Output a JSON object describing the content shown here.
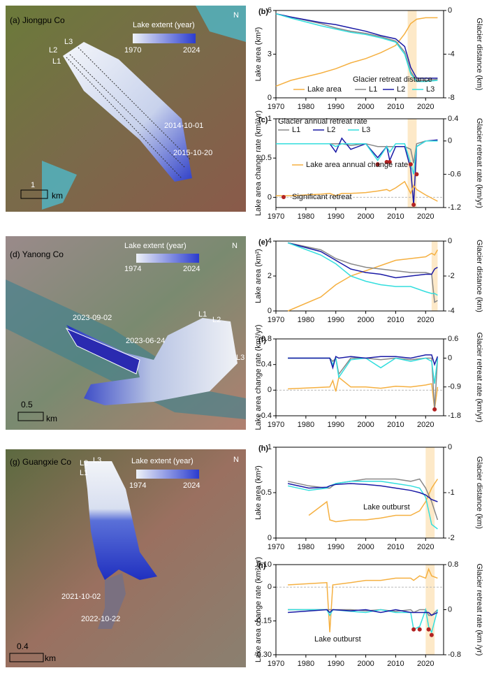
{
  "maps": [
    {
      "title": "(a) Jiongpu Co",
      "legend_title": "Lake extent (year)",
      "legend_start": "1970",
      "legend_end": "2024",
      "north": "N",
      "lines": [
        "L1",
        "L2",
        "L3"
      ],
      "dates": [
        "2014-10-01",
        "2015-10-20"
      ],
      "scale": "1",
      "scale_unit": "km"
    },
    {
      "title": "(d) Yanong Co",
      "legend_title": "Lake extent (year)",
      "legend_start": "1974",
      "legend_end": "2024",
      "north": "N",
      "lines": [
        "L1",
        "L2",
        "L3"
      ],
      "dates": [
        "2023-09-02",
        "2023-06-24"
      ],
      "scale": "0.5",
      "scale_unit": "km"
    },
    {
      "title": "(g) Guangxie Co",
      "legend_title": "Lake extent (year)",
      "legend_start": "1974",
      "legend_end": "2024",
      "north": "N",
      "lines": [
        "L1",
        "L2",
        "L3"
      ],
      "dates": [
        "2021-10-02",
        "2022-10-22"
      ],
      "scale": "0.4",
      "scale_unit": "km"
    }
  ],
  "chart_data": [
    {
      "type": "line",
      "label": "(b)",
      "ylabel": "Lake area (km²)",
      "y2label": "Glacier distance (km)",
      "xlim": [
        1970,
        2026
      ],
      "xticks": [
        1970,
        1980,
        1990,
        2000,
        2010,
        2020
      ],
      "ylim": [
        0,
        6
      ],
      "yticks": [
        0,
        3,
        6
      ],
      "y2lim": [
        -8,
        0
      ],
      "y2ticks": [
        0,
        -4,
        -8
      ],
      "highlight": [
        2014,
        2017
      ],
      "legend_title": "Glacier retreat distance",
      "x": [
        1970,
        1975,
        1985,
        1990,
        1995,
        2000,
        2005,
        2010,
        2013,
        2015,
        2017,
        2020,
        2024
      ],
      "series": [
        {
          "name": "Lake area",
          "color": "#f5b041",
          "values": [
            0.8,
            1.2,
            1.7,
            2.0,
            2.4,
            2.7,
            3.1,
            3.6,
            4.4,
            5.1,
            5.4,
            5.5,
            5.5
          ]
        },
        {
          "name": "L1",
          "color": "#888888",
          "axis": "y2",
          "values": [
            -0.3,
            -0.6,
            -1.2,
            -1.6,
            -1.9,
            -2.1,
            -2.4,
            -2.8,
            -3.8,
            -5.6,
            -6.4,
            -6.4,
            -6.3
          ]
        },
        {
          "name": "L2",
          "color": "#1a1aa6",
          "axis": "y2",
          "values": [
            -0.3,
            -0.6,
            -1.1,
            -1.3,
            -1.6,
            -1.9,
            -2.3,
            -2.6,
            -3.3,
            -5.2,
            -6.2,
            -6.2,
            -6.2
          ]
        },
        {
          "name": "L3",
          "color": "#33dede",
          "axis": "y2",
          "values": [
            -0.3,
            -0.7,
            -1.4,
            -1.7,
            -2.0,
            -2.2,
            -2.5,
            -2.9,
            -4.0,
            -5.8,
            -6.5,
            -6.5,
            -6.4
          ]
        }
      ]
    },
    {
      "type": "line",
      "label": "(c)",
      "ylabel": "Lake area change rate (km²/yr)",
      "y2label": "Glacier retreat rate (km/yr)",
      "xlim": [
        1970,
        2026
      ],
      "xticks": [
        1970,
        1980,
        1990,
        2000,
        2010,
        2020
      ],
      "ylim": [
        -0.13,
        1
      ],
      "yticks": [
        0,
        0.5,
        1
      ],
      "y2lim": [
        -1.2,
        0.4
      ],
      "y2ticks": [
        0.4,
        0,
        -0.6,
        -1.2
      ],
      "highlight": [
        2014,
        2017
      ],
      "zero_line": true,
      "legend_title": "Glacier annual retreat rate",
      "x": [
        1970,
        1975,
        1985,
        1988,
        1990,
        1992,
        1995,
        2000,
        2004,
        2007,
        2008,
        2010,
        2013,
        2015,
        2016,
        2017,
        2020,
        2024
      ],
      "series": [
        {
          "name": "L1",
          "color": "#888888",
          "axis": "y2",
          "values": [
            -0.05,
            -0.05,
            -0.05,
            -0.05,
            -0.05,
            -0.05,
            -0.08,
            -0.05,
            -0.1,
            -0.1,
            -0.1,
            -0.1,
            -0.1,
            -0.15,
            -0.4,
            -0.05,
            0,
            0
          ]
        },
        {
          "name": "L2",
          "color": "#1a1aa6",
          "axis": "y2",
          "values": [
            -0.05,
            -0.05,
            -0.05,
            -0.05,
            -0.2,
            0.05,
            -0.15,
            -0.05,
            -0.3,
            -0.1,
            -0.35,
            -0.1,
            -0.1,
            -0.5,
            -1.15,
            -0.1,
            0,
            0.02
          ]
        },
        {
          "name": "L3",
          "color": "#33dede",
          "axis": "y2",
          "values": [
            -0.05,
            -0.05,
            -0.05,
            -0.05,
            -0.1,
            -0.05,
            -0.05,
            -0.05,
            -0.35,
            -0.1,
            -0.2,
            -0.05,
            -0.05,
            -0.4,
            -0.6,
            -0.1,
            0,
            0
          ]
        },
        {
          "name": "Lake area annual change rate",
          "color": "#f5b041",
          "values": [
            0.02,
            0.02,
            0.04,
            0.05,
            0.02,
            0.05,
            0.05,
            0.06,
            0.08,
            0.1,
            0.08,
            0.12,
            0.2,
            0.05,
            0.15,
            0.1,
            0.03,
            -0.05
          ]
        }
      ],
      "points": {
        "name": "Significant retreat",
        "color": "#b22222",
        "axis": "y2",
        "x": [
          2004,
          2007,
          2008,
          2015,
          2016,
          2017
        ],
        "values": [
          -0.42,
          -0.38,
          -0.38,
          -0.42,
          -1.15,
          -0.6
        ]
      }
    },
    {
      "type": "line",
      "label": "(e)",
      "ylabel": "Lake area (km²)",
      "y2label": "Glacier distance (km)",
      "xlim": [
        1970,
        2026
      ],
      "xticks": [
        1970,
        1980,
        1990,
        2000,
        2010,
        2020
      ],
      "ylim": [
        0,
        4
      ],
      "yticks": [
        0,
        2,
        4
      ],
      "y2lim": [
        -4,
        0
      ],
      "y2ticks": [
        0,
        -2,
        -4
      ],
      "highlight": [
        2022,
        2024
      ],
      "x": [
        1974,
        1985,
        1990,
        1995,
        2000,
        2005,
        2010,
        2015,
        2020,
        2022,
        2023,
        2024
      ],
      "series": [
        {
          "color": "#f5b041",
          "values": [
            0,
            0.8,
            1.5,
            2.0,
            2.3,
            2.6,
            2.9,
            3.0,
            3.1,
            3.3,
            3.2,
            3.5
          ]
        },
        {
          "color": "#888888",
          "axis": "y2",
          "values": [
            -0.1,
            -0.5,
            -1.0,
            -1.3,
            -1.5,
            -1.6,
            -1.7,
            -1.8,
            -1.8,
            -1.9,
            -3.5,
            -3.4
          ]
        },
        {
          "color": "#1a1aa6",
          "axis": "y2",
          "values": [
            -0.1,
            -0.6,
            -1.1,
            -1.6,
            -1.8,
            -1.9,
            -2.1,
            -2.0,
            -1.9,
            -1.9,
            -1.6,
            -1.5
          ]
        },
        {
          "color": "#33dede",
          "axis": "y2",
          "values": [
            -0.1,
            -0.8,
            -1.3,
            -2.0,
            -2.3,
            -2.5,
            -2.6,
            -2.6,
            -2.9,
            -3.0,
            -3.0,
            -3.1
          ]
        }
      ]
    },
    {
      "type": "line",
      "label": "(f)",
      "ylabel": "Lake area change rate (km²/yr)",
      "y2label": "Glacier retreat rate (km/yr)",
      "xlim": [
        1970,
        2026
      ],
      "xticks": [
        1970,
        1980,
        1990,
        2000,
        2010,
        2020
      ],
      "ylim": [
        -0.4,
        0.8
      ],
      "yticks": [
        0.8,
        0.4,
        0,
        -0.4
      ],
      "y2lim": [
        -1.8,
        0.6
      ],
      "y2ticks": [
        0.6,
        0,
        -0.9,
        -1.8
      ],
      "zero_line": true,
      "x": [
        1974,
        1988,
        1989,
        1990,
        1991,
        1995,
        2000,
        2005,
        2010,
        2015,
        2020,
        2022,
        2023,
        2024
      ],
      "series": [
        {
          "color": "#f5b041",
          "values": [
            0.02,
            0.05,
            0.15,
            -0.02,
            0.2,
            0.05,
            0.05,
            0.03,
            0.06,
            0.05,
            0.08,
            0.1,
            -0.3,
            0.05
          ]
        },
        {
          "color": "#888888",
          "axis": "y2",
          "values": [
            0,
            0,
            -0.1,
            0,
            -0.5,
            0,
            0,
            -0.05,
            0,
            -0.05,
            0,
            0,
            -1.6,
            0
          ]
        },
        {
          "color": "#33dede",
          "axis": "y2",
          "values": [
            0,
            0,
            -0.2,
            0,
            -0.6,
            -0.05,
            0,
            -0.3,
            0,
            -0.1,
            0,
            -0.1,
            -0.8,
            0
          ]
        },
        {
          "color": "#1a1aa6",
          "axis": "y2",
          "values": [
            0,
            0,
            -0.3,
            0.05,
            0,
            0.05,
            0,
            0.05,
            0.05,
            0,
            0.1,
            0.1,
            -0.2,
            0.05
          ]
        }
      ],
      "points": {
        "color": "#b22222",
        "axis": "y2",
        "x": [
          2023
        ],
        "values": [
          -1.6
        ]
      }
    },
    {
      "type": "line",
      "label": "(h)",
      "ylabel": "Lake area (km²)",
      "y2label": "Glacier distance (km)",
      "xlim": [
        1970,
        2026
      ],
      "xticks": [
        1970,
        1980,
        1990,
        2000,
        2010,
        2020
      ],
      "ylim": [
        0,
        1
      ],
      "yticks": [
        0,
        0.5,
        1
      ],
      "y2lim": [
        -2,
        0
      ],
      "y2ticks": [
        0,
        -1,
        -2
      ],
      "highlight": [
        2020,
        2023
      ],
      "annotations": [
        "Lake outburst"
      ],
      "x": [
        1974,
        1981,
        1987,
        1988,
        1990,
        1995,
        2000,
        2005,
        2010,
        2015,
        2018,
        2020,
        2022,
        2024
      ],
      "series": [
        {
          "color": "#f5b041",
          "values": [
            null,
            0.25,
            0.4,
            0.2,
            0.18,
            0.2,
            0.2,
            0.22,
            0.25,
            0.25,
            0.3,
            0.4,
            0.55,
            0.65
          ]
        },
        {
          "color": "#888888",
          "axis": "y2",
          "values": [
            -0.75,
            -0.85,
            -0.9,
            -0.9,
            -0.8,
            -0.75,
            -0.7,
            -0.7,
            -0.7,
            -0.75,
            -0.7,
            -0.9,
            -1.2,
            -1.6
          ]
        },
        {
          "color": "#33dede",
          "axis": "y2",
          "values": [
            -0.85,
            -0.95,
            -0.9,
            -0.85,
            -0.8,
            -0.75,
            -0.75,
            -0.75,
            -0.8,
            -0.85,
            -0.9,
            -1.1,
            -1.7,
            -1.8
          ]
        },
        {
          "color": "#1a1aa6",
          "axis": "y2",
          "values": [
            -0.8,
            -0.9,
            -0.88,
            -0.85,
            -0.82,
            -0.8,
            -0.82,
            -0.85,
            -0.9,
            -0.95,
            -1.0,
            -1.05,
            -1.15,
            -1.2
          ]
        }
      ]
    },
    {
      "type": "line",
      "label": "(i)",
      "ylabel": "Lake area change rate (km²/yr)",
      "y2label": "Glacier retreat rate (km /yr)",
      "xlim": [
        1970,
        2026
      ],
      "xticks": [
        1970,
        1980,
        1990,
        2000,
        2010,
        2020
      ],
      "ylim": [
        -0.3,
        0.1
      ],
      "yticks": [
        {
          "value": 0.1,
          "label": "0.10"
        },
        0,
        -0.15,
        {
          "value": -0.3,
          "label": "-0.30"
        }
      ],
      "y2lim": [
        -0.8,
        0.8
      ],
      "y2ticks": [
        0.8,
        0,
        -0.8
      ],
      "highlight": [
        2020,
        2023
      ],
      "zero_line": true,
      "annotations": [
        "Lake outburst"
      ],
      "x": [
        1974,
        1987,
        1988,
        1989,
        1995,
        2000,
        2005,
        2010,
        2015,
        2016,
        2018,
        2020,
        2021,
        2022,
        2024
      ],
      "series": [
        {
          "color": "#f5b041",
          "values": [
            0.01,
            0.02,
            -0.2,
            0.01,
            0.02,
            0.03,
            0.03,
            0.04,
            0.04,
            0.03,
            0.05,
            0.04,
            0.08,
            0.05,
            0.04
          ]
        },
        {
          "color": "#888888",
          "axis": "y2",
          "values": [
            0,
            0,
            0,
            0,
            0,
            -0.02,
            0,
            -0.03,
            0,
            -0.05,
            0,
            0,
            -0.1,
            -0.1,
            0
          ]
        },
        {
          "color": "#33dede",
          "axis": "y2",
          "values": [
            0,
            0,
            -0.1,
            0,
            -0.03,
            -0.05,
            0,
            -0.05,
            -0.05,
            -0.35,
            -0.3,
            0,
            -0.3,
            -0.4,
            0
          ]
        },
        {
          "color": "#1a1aa6",
          "axis": "y2",
          "values": [
            -0.05,
            0,
            -0.05,
            0,
            -0.02,
            0,
            -0.05,
            0,
            -0.05,
            -0.05,
            -0.05,
            -0.05,
            -0.05,
            -0.1,
            -0.05
          ]
        }
      ],
      "points": {
        "color": "#b22222",
        "axis": "y2",
        "x": [
          2016,
          2018,
          2021,
          2022
        ],
        "values": [
          -0.35,
          -0.35,
          -0.35,
          -0.45
        ]
      }
    }
  ]
}
